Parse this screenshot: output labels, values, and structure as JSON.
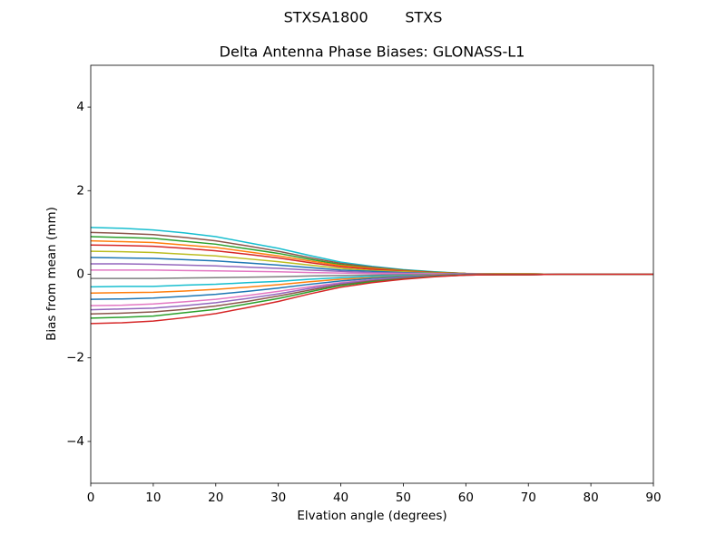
{
  "chart_data": {
    "type": "line",
    "suptitle": "STXSA1800        STXS",
    "title": "Delta Antenna Phase Biases: GLONASS-L1",
    "xlabel": "Elvation angle (degrees)",
    "ylabel": "Bias from mean (mm)",
    "x": [
      0,
      5,
      10,
      15,
      20,
      25,
      30,
      35,
      40,
      45,
      50,
      55,
      60,
      65,
      70,
      75,
      80,
      85,
      90
    ],
    "xlim": [
      0,
      90
    ],
    "xticks": [
      0,
      10,
      20,
      30,
      40,
      50,
      60,
      70,
      80,
      90
    ],
    "ylim": [
      -5,
      5
    ],
    "yticks": [
      {
        "value": -4,
        "label": "−4"
      },
      {
        "value": -2,
        "label": "−2"
      },
      0,
      2,
      4
    ],
    "series": [
      {
        "color": "#17becf",
        "values": [
          1.12,
          1.1,
          1.06,
          0.99,
          0.9,
          0.76,
          0.62,
          0.45,
          0.29,
          0.19,
          0.11,
          0.06,
          0.02,
          0.01,
          0.01,
          0,
          0,
          0,
          0
        ]
      },
      {
        "color": "#8c564b",
        "values": [
          1,
          0.98,
          0.95,
          0.88,
          0.8,
          0.68,
          0.55,
          0.4,
          0.26,
          0.17,
          0.1,
          0.05,
          0.02,
          0.01,
          0.01,
          0,
          0,
          0,
          0
        ]
      },
      {
        "color": "#2ca02c",
        "values": [
          0.9,
          0.88,
          0.86,
          0.79,
          0.72,
          0.61,
          0.5,
          0.36,
          0.23,
          0.15,
          0.09,
          0.05,
          0.02,
          0.01,
          0.01,
          0,
          0,
          0,
          0
        ]
      },
      {
        "color": "#ff7f0e",
        "values": [
          0.8,
          0.78,
          0.76,
          0.7,
          0.64,
          0.54,
          0.44,
          0.32,
          0.21,
          0.14,
          0.08,
          0.04,
          0.02,
          0.01,
          0.01,
          0,
          0,
          0,
          0
        ]
      },
      {
        "color": "#d62728",
        "values": [
          0.7,
          0.69,
          0.67,
          0.62,
          0.56,
          0.48,
          0.39,
          0.28,
          0.18,
          0.12,
          0.07,
          0.04,
          0.01,
          0.01,
          0.01,
          0,
          0,
          0,
          0
        ]
      },
      {
        "color": "#bcbd22",
        "values": [
          0.55,
          0.54,
          0.52,
          0.48,
          0.44,
          0.37,
          0.3,
          0.22,
          0.14,
          0.09,
          0.06,
          0.03,
          0.01,
          0.01,
          0.01,
          0,
          0,
          0,
          0
        ]
      },
      {
        "color": "#1f77b4",
        "values": [
          0.4,
          0.39,
          0.38,
          0.35,
          0.32,
          0.27,
          0.22,
          0.16,
          0.1,
          0.07,
          0.04,
          0.02,
          0.01,
          0,
          0,
          0,
          0,
          0,
          0
        ]
      },
      {
        "color": "#9467bd",
        "values": [
          0.25,
          0.25,
          0.24,
          0.22,
          0.2,
          0.17,
          0.14,
          0.1,
          0.07,
          0.04,
          0.03,
          0.01,
          0.01,
          0,
          0,
          0,
          0,
          0,
          0
        ]
      },
      {
        "color": "#e377c2",
        "values": [
          0.1,
          0.1,
          0.1,
          0.09,
          0.08,
          0.07,
          0.06,
          0.04,
          0.03,
          0.02,
          0.01,
          0.01,
          0,
          0,
          0,
          0,
          0,
          0,
          0
        ]
      },
      {
        "color": "#7f7f7f",
        "values": [
          -0.1,
          -0.1,
          -0.1,
          -0.09,
          -0.08,
          -0.07,
          -0.06,
          -0.04,
          -0.03,
          -0.02,
          -0.01,
          -0.01,
          0,
          0,
          0,
          0,
          0,
          0,
          0
        ]
      },
      {
        "color": "#17becf",
        "values": [
          -0.3,
          -0.29,
          -0.29,
          -0.26,
          -0.24,
          -0.2,
          -0.17,
          -0.12,
          -0.08,
          -0.05,
          -0.03,
          -0.02,
          -0.01,
          0,
          0,
          0,
          0,
          0,
          0
        ]
      },
      {
        "color": "#ff7f0e",
        "values": [
          -0.45,
          -0.44,
          -0.43,
          -0.4,
          -0.36,
          -0.31,
          -0.25,
          -0.18,
          -0.12,
          -0.08,
          -0.05,
          -0.02,
          -0.01,
          0,
          0,
          0,
          0,
          0,
          0
        ]
      },
      {
        "color": "#1f77b4",
        "values": [
          -0.6,
          -0.59,
          -0.57,
          -0.53,
          -0.48,
          -0.41,
          -0.33,
          -0.24,
          -0.16,
          -0.1,
          -0.06,
          -0.03,
          -0.01,
          -0.01,
          -0.01,
          0,
          0,
          0,
          0
        ]
      },
      {
        "color": "#e377c2",
        "values": [
          -0.75,
          -0.74,
          -0.71,
          -0.66,
          -0.6,
          -0.51,
          -0.41,
          -0.3,
          -0.2,
          -0.13,
          -0.08,
          -0.04,
          -0.02,
          -0.01,
          -0.01,
          0,
          0,
          0,
          0
        ]
      },
      {
        "color": "#9467bd",
        "values": [
          -0.85,
          -0.83,
          -0.81,
          -0.75,
          -0.68,
          -0.58,
          -0.47,
          -0.34,
          -0.22,
          -0.14,
          -0.09,
          -0.04,
          -0.02,
          -0.01,
          -0.01,
          0,
          0,
          0,
          0
        ]
      },
      {
        "color": "#8c564b",
        "values": [
          -0.95,
          -0.93,
          -0.9,
          -0.84,
          -0.76,
          -0.65,
          -0.52,
          -0.38,
          -0.25,
          -0.16,
          -0.1,
          -0.05,
          -0.02,
          -0.01,
          -0.01,
          0,
          0,
          0,
          0
        ]
      },
      {
        "color": "#2ca02c",
        "values": [
          -1.05,
          -1.03,
          -1,
          -0.92,
          -0.84,
          -0.71,
          -0.58,
          -0.42,
          -0.27,
          -0.18,
          -0.11,
          -0.05,
          -0.02,
          -0.01,
          -0.01,
          0,
          0,
          0,
          0
        ]
      },
      {
        "color": "#d62728",
        "values": [
          -1.18,
          -1.16,
          -1.12,
          -1.04,
          -0.94,
          -0.8,
          -0.65,
          -0.47,
          -0.31,
          -0.2,
          -0.12,
          -0.06,
          -0.02,
          -0.01,
          -0.01,
          0,
          0,
          0,
          0
        ]
      }
    ]
  }
}
